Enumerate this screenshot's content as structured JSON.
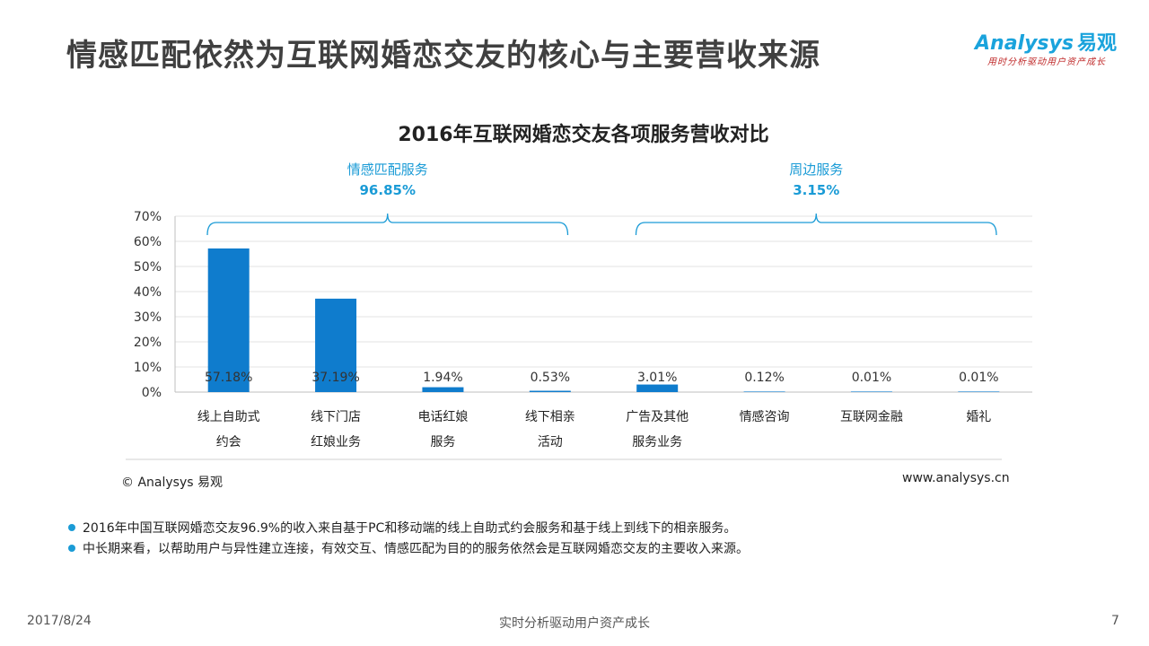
{
  "page": {
    "title": "情感匹配依然为互联网婚恋交友的核心与主要营收来源",
    "brand_name": "nalysys",
    "brand_initial": "A",
    "brand_cn": "易观",
    "brand_slogan": "用时分析驱动用户资产成长"
  },
  "chart_data": {
    "type": "bar",
    "title": "2016年互联网婚恋交友各项服务营收对比",
    "categories": [
      "线上自助式\n约会",
      "线下门店\n红娘业务",
      "电话红娘\n服务",
      "线下相亲\n活动",
      "广告及其他\n服务业务",
      "情感咨询",
      "互联网金融",
      "婚礼"
    ],
    "values": [
      57.18,
      37.19,
      1.94,
      0.53,
      3.01,
      0.12,
      0.01,
      0.01
    ],
    "value_labels": [
      "57.18%",
      "37.19%",
      "1.94%",
      "0.53%",
      "3.01%",
      "0.12%",
      "0.01%",
      "0.01%"
    ],
    "ylim": [
      0,
      70
    ],
    "yticks": [
      "0%",
      "10%",
      "20%",
      "30%",
      "40%",
      "50%",
      "60%",
      "70%"
    ],
    "grid": true,
    "bar_color": "#0f7ccd",
    "groups": [
      {
        "label": "情感匹配服务",
        "value": "96.85%",
        "from": 0,
        "to": 3
      },
      {
        "label": "周边服务",
        "value": "3.15%",
        "from": 4,
        "to": 7
      }
    ],
    "group_color": "#1a9bd6"
  },
  "source": {
    "left": "© Analysys 易观",
    "right": "www.analysys.cn"
  },
  "notes": [
    "2016年中国互联网婚恋交友96.9%的收入来自基于PC和移动端的线上自助式约会服务和基于线上到线下的相亲服务。",
    "中长期来看，以帮助用户与异性建立连接，有效交互、情感匹配为目的的服务依然会是互联网婚恋交友的主要收入来源。"
  ],
  "footer": {
    "date": "2017/8/24",
    "slogan": "实时分析驱动用户资产成长",
    "page_number": "7"
  }
}
